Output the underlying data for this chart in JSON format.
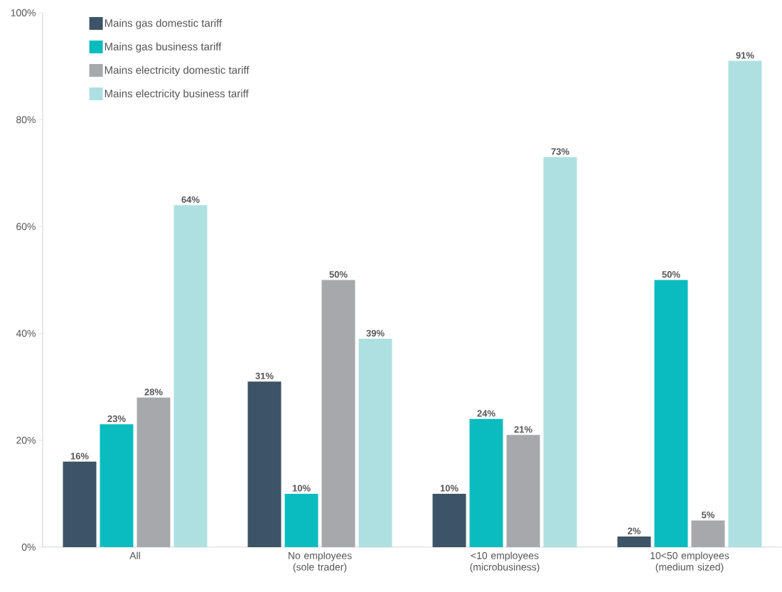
{
  "chart_data": {
    "type": "bar",
    "categories": [
      "All",
      "No employees (sole trader)",
      "<10 employees (microbusiness)",
      "10<50 employees (medium sized)"
    ],
    "series": [
      {
        "name": "Mains gas domestic tariff",
        "color": "#3d5366",
        "values": [
          16,
          31,
          10,
          2
        ],
        "value_labels": [
          "16%",
          "31%",
          "10%",
          "2%"
        ]
      },
      {
        "name": "Mains gas business tariff",
        "color": "#0bbcbf",
        "values": [
          23,
          10,
          24,
          50
        ],
        "value_labels": [
          "23%",
          "10%",
          "24%",
          "50%"
        ]
      },
      {
        "name": "Mains electricity domestic tariff",
        "color": "#a7a8ab",
        "values": [
          28,
          50,
          21,
          5
        ],
        "value_labels": [
          "28%",
          "50%",
          "21%",
          "5%"
        ]
      },
      {
        "name": "Mains electricity business tariff",
        "color": "#aee0e2",
        "values": [
          64,
          39,
          73,
          91
        ],
        "value_labels": [
          "64%",
          "39%",
          "73%",
          "91%"
        ]
      }
    ],
    "ylim": [
      0,
      100
    ],
    "yticks": [
      {
        "value": 0,
        "label": "0%"
      },
      {
        "value": 20,
        "label": "20%"
      },
      {
        "value": 40,
        "label": "40%"
      },
      {
        "value": 60,
        "label": "60%"
      },
      {
        "value": 80,
        "label": "80%"
      },
      {
        "value": 100,
        "label": "100%"
      }
    ],
    "grid": false,
    "legend": "top left"
  }
}
